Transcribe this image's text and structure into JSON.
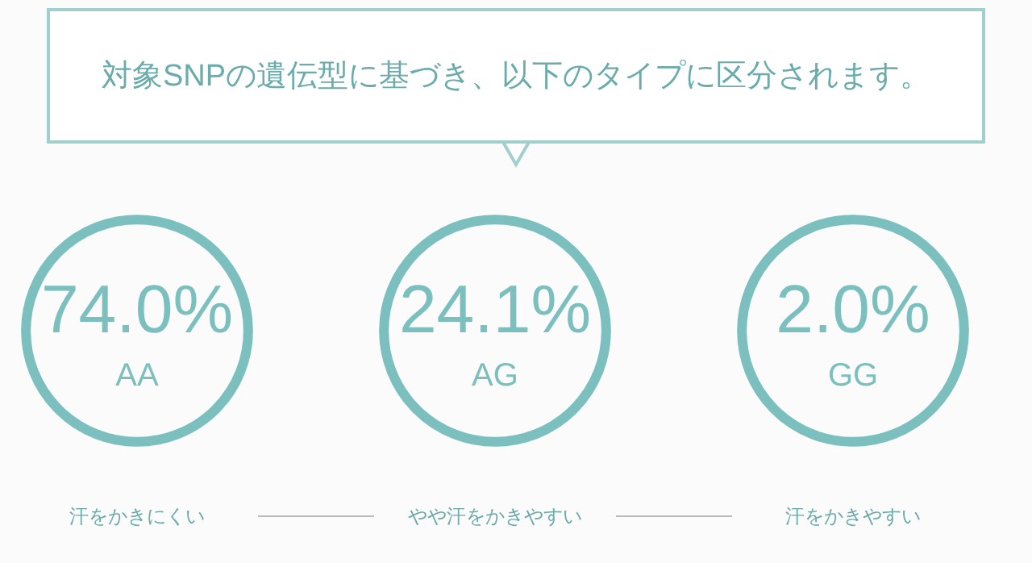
{
  "chart_data": {
    "type": "other",
    "title": "対象SNPの遺伝型に基づき、以下のタイプに区分されます。",
    "categories": [
      "AA",
      "AG",
      "GG"
    ],
    "values": [
      74.0,
      24.1,
      2.0
    ],
    "value_labels": [
      "74.0%",
      "24.1%",
      "2.0%"
    ],
    "color": "#7bbfbf",
    "annotations": [
      "汗をかきにくい",
      "やや汗をかきやすい",
      "汗をかきやすい"
    ]
  }
}
